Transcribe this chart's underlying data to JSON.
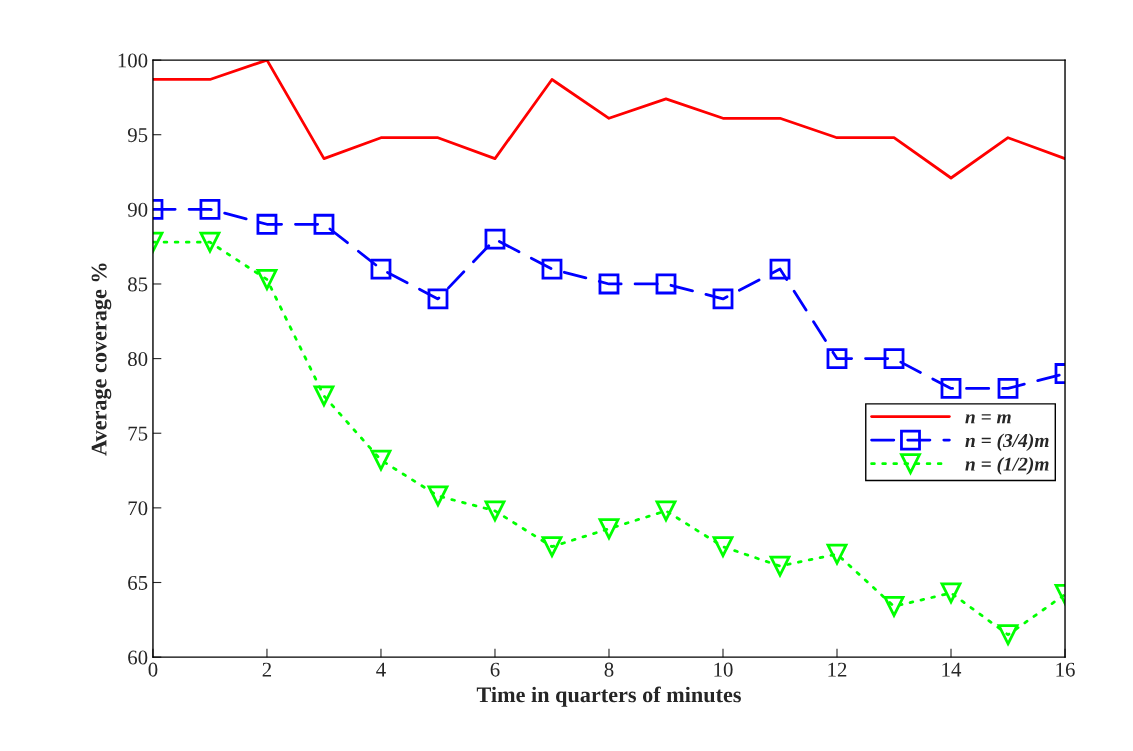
{
  "chart_data": {
    "type": "line",
    "xlabel": "Time in quarters of minutes",
    "ylabel": "Average coverage %",
    "x": [
      0,
      1,
      2,
      3,
      4,
      5,
      6,
      7,
      8,
      9,
      10,
      11,
      12,
      13,
      14,
      15,
      16
    ],
    "series": [
      {
        "name": "n = m",
        "color": "#ff0000",
        "line_style": "solid",
        "marker": "none",
        "values": [
          98.7,
          98.7,
          100,
          93.4,
          94.8,
          94.8,
          93.4,
          98.7,
          96.1,
          97.4,
          96.1,
          96.1,
          94.8,
          94.8,
          92.1,
          94.8,
          93.4
        ]
      },
      {
        "name": "n = (3/4)m",
        "color": "#0000ff",
        "line_style": "dashed",
        "marker": "square",
        "values": [
          90,
          90,
          89,
          89,
          86,
          84,
          88,
          86,
          85,
          85,
          84,
          86,
          80,
          80,
          78,
          78,
          79
        ]
      },
      {
        "name": "n = (1/2)m",
        "color": "#00ff00",
        "line_style": "dotted",
        "marker": "triangle",
        "values": [
          87.8,
          87.8,
          85.3,
          77.5,
          73.2,
          70.8,
          69.8,
          67.4,
          68.6,
          69.8,
          67.4,
          66.1,
          66.9,
          63.4,
          64.3,
          61.5,
          64.2
        ]
      }
    ],
    "xlim": [
      0,
      16
    ],
    "xticks": [
      0,
      2,
      4,
      6,
      8,
      10,
      12,
      14,
      16
    ],
    "ylim": [
      60,
      100
    ],
    "yticks": [
      60,
      65,
      70,
      75,
      80,
      85,
      90,
      95,
      100
    ],
    "grid": false,
    "legend": "right"
  }
}
